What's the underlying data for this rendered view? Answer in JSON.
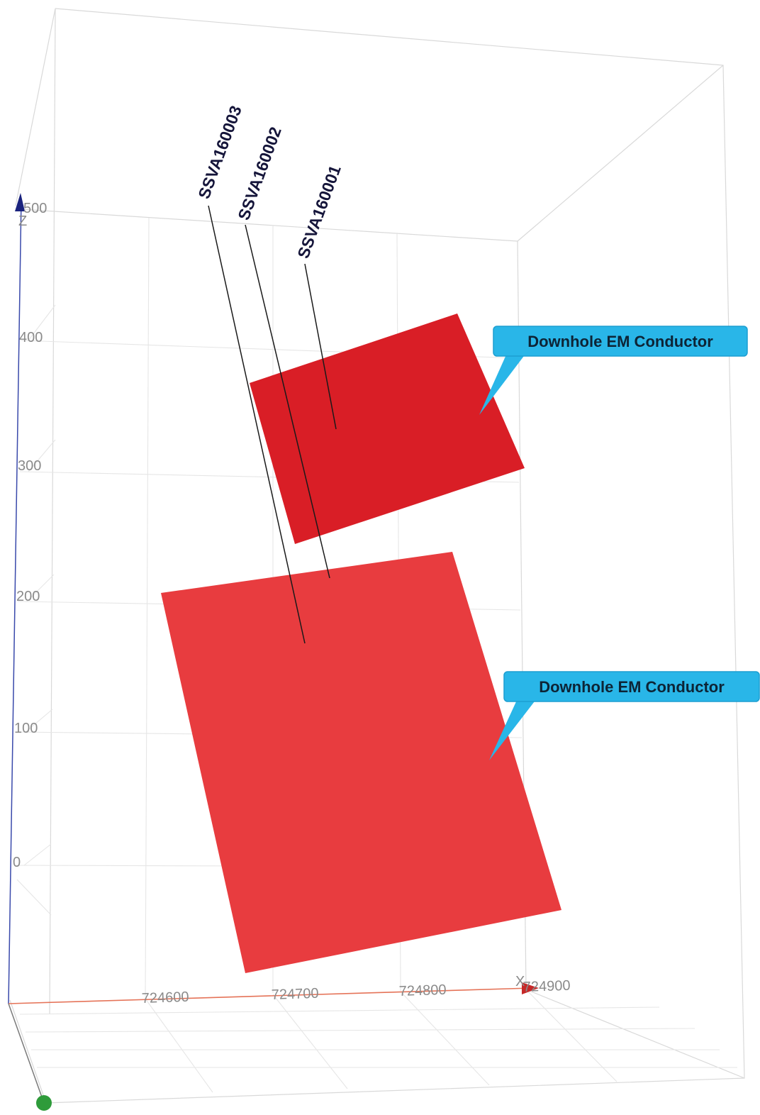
{
  "axes": {
    "z_ticks": [
      "500",
      "400",
      "300",
      "200",
      "100",
      "0"
    ],
    "x_ticks": [
      "724600",
      "724700",
      "724800",
      "724900"
    ],
    "x_axis_letter": "X",
    "z_axis_letter": "Z",
    "z_axis_color": "#1a237e",
    "x_axis_color": "#e57358",
    "y_axis_color": "#2e9b3a"
  },
  "drillholes": [
    {
      "name": "SSVA160003"
    },
    {
      "name": "SSVA160002"
    },
    {
      "name": "SSVA160001"
    }
  ],
  "conductors": [
    {
      "label": "Downhole EM Conductor",
      "color": "#d91e26"
    },
    {
      "label": "Downhole EM Conductor",
      "color": "#e83c3f"
    }
  ],
  "callout_color": "#29b6e8"
}
